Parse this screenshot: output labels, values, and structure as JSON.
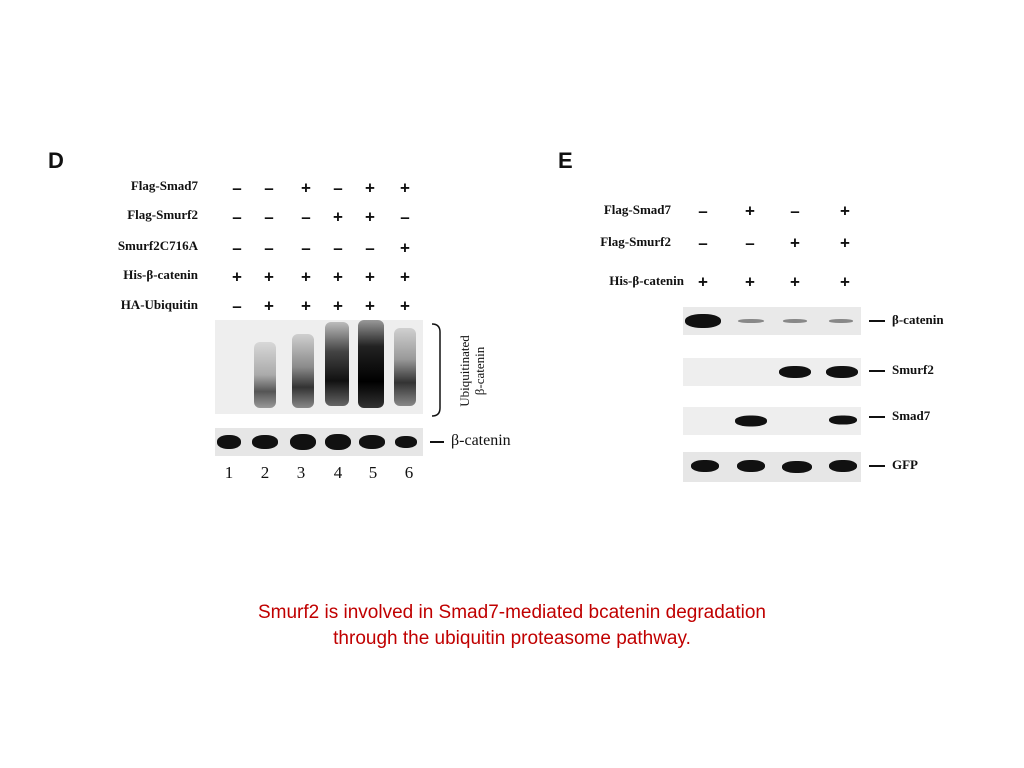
{
  "panel_d": {
    "letter": "D",
    "rows": [
      {
        "label": "Flag-Smad7",
        "signs": [
          "–",
          "–",
          "+",
          "–",
          "+",
          "+"
        ]
      },
      {
        "label": "Flag-Smurf2",
        "signs": [
          "–",
          "–",
          "–",
          "+",
          "+",
          "–"
        ]
      },
      {
        "label": "Smurf2C716A",
        "signs": [
          "–",
          "–",
          "–",
          "–",
          "–",
          "+"
        ]
      },
      {
        "label": "His-β-catenin",
        "signs": [
          "+",
          "+",
          "+",
          "+",
          "+",
          "+"
        ]
      },
      {
        "label": "HA-Ubiquitin",
        "signs": [
          "–",
          "+",
          "+",
          "+",
          "+",
          "+"
        ]
      }
    ],
    "bracket_label_line1": "Ubiquitinated",
    "bracket_label_line2": "β-catenin",
    "band_marker": "β-catenin",
    "lane_numbers": [
      "1",
      "2",
      "3",
      "4",
      "5",
      "6"
    ]
  },
  "panel_e": {
    "letter": "E",
    "rows": [
      {
        "label": "Flag-Smad7",
        "signs": [
          "–",
          "+",
          "–",
          "+"
        ]
      },
      {
        "label": "Flag-Smurf2",
        "signs": [
          "–",
          "–",
          "+",
          "+"
        ]
      },
      {
        "label": "His-β-catenin",
        "signs": [
          "+",
          "+",
          "+",
          "+"
        ]
      }
    ],
    "blot_markers": [
      "β-catenin",
      "Smurf2",
      "Smad7",
      "GFP"
    ]
  },
  "caption": {
    "line1": "Smurf2 is involved in Smad7-mediated bcatenin degradation",
    "line2": "through the ubiquitin proteasome pathway."
  }
}
